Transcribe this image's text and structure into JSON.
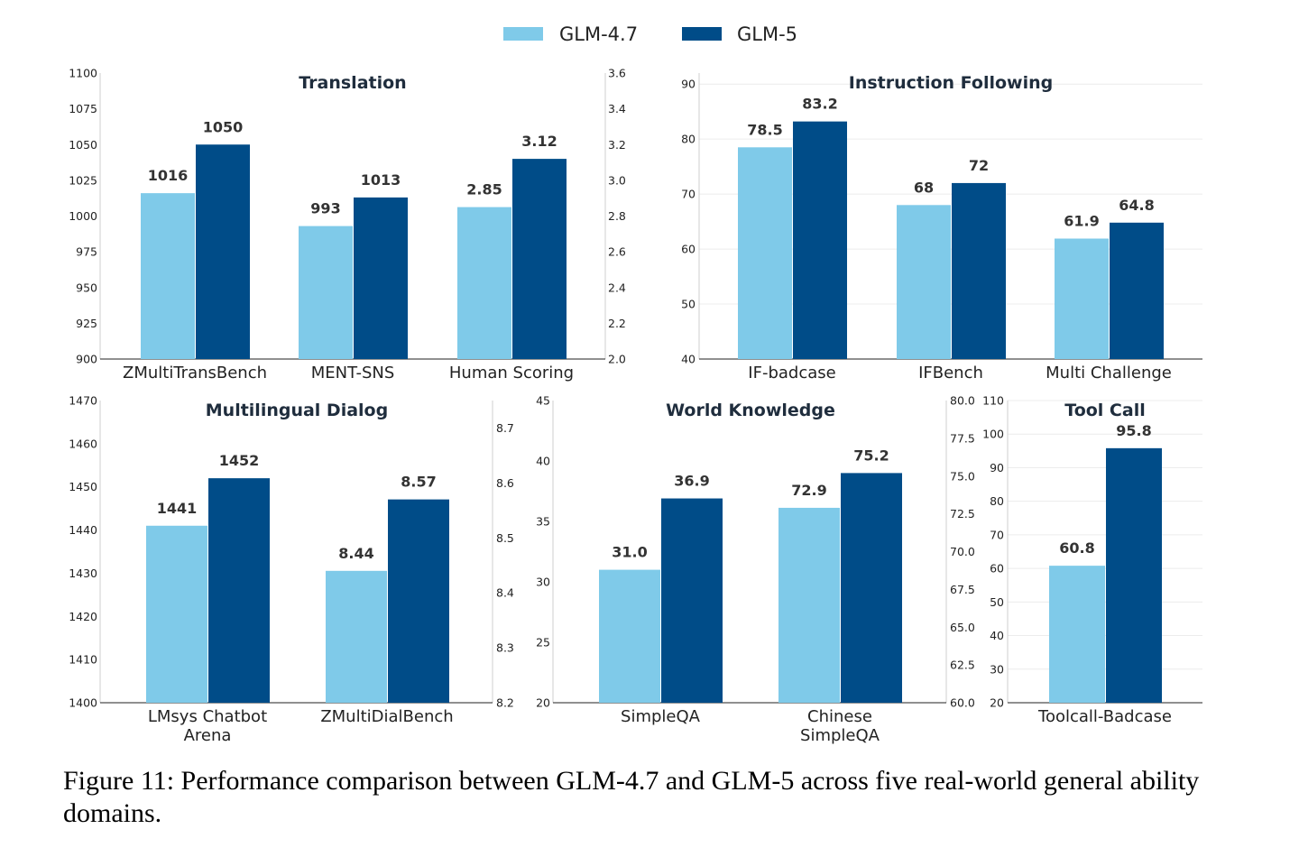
{
  "legend": {
    "series": [
      {
        "name": "GLM-4.7",
        "color": "#7fcae9"
      },
      {
        "name": "GLM-5",
        "color": "#004c88"
      }
    ],
    "placement": "top-center"
  },
  "caption": "Figure 11: Performance comparison between GLM-4.7 and GLM-5 across five real-world general ability domains.",
  "chart_data": [
    {
      "type": "bar",
      "title": "Translation",
      "categories": [
        "ZMultiTransBench",
        "MENT-SNS",
        "Human Scoring"
      ],
      "series": [
        {
          "name": "GLM-4.7",
          "values": [
            1016,
            993,
            2.85
          ]
        },
        {
          "name": "GLM-5",
          "values": [
            1050,
            1013,
            3.12
          ]
        }
      ],
      "data_labels": [
        [
          "1016",
          "993",
          "2.85"
        ],
        [
          "1050",
          "1013",
          "3.12"
        ]
      ],
      "category_axis": [
        "left",
        "left",
        "right"
      ],
      "left_axis": {
        "ylim": [
          900,
          1100
        ],
        "ticks": [
          "900",
          "925",
          "950",
          "975",
          "1000",
          "1025",
          "1050",
          "1075",
          "1100"
        ]
      },
      "right_axis": {
        "ylim": [
          2.0,
          3.6
        ],
        "ticks": [
          "2.0",
          "2.2",
          "2.4",
          "2.6",
          "2.8",
          "3.0",
          "3.2",
          "3.4",
          "3.6"
        ]
      },
      "grid": false
    },
    {
      "type": "bar",
      "title": "Instruction Following",
      "categories": [
        "IF-badcase",
        "IFBench",
        "Multi Challenge"
      ],
      "series": [
        {
          "name": "GLM-4.7",
          "values": [
            78.5,
            68,
            61.9
          ]
        },
        {
          "name": "GLM-5",
          "values": [
            83.2,
            72,
            64.8
          ]
        }
      ],
      "data_labels": [
        [
          "78.5",
          "68",
          "61.9"
        ],
        [
          "83.2",
          "72",
          "64.8"
        ]
      ],
      "category_axis": [
        "left",
        "left",
        "left"
      ],
      "left_axis": {
        "ylim": [
          40,
          92
        ],
        "ticks": [
          "40",
          "50",
          "60",
          "70",
          "80",
          "90"
        ]
      },
      "grid": true
    },
    {
      "type": "bar",
      "title": "Multilingual Dialog",
      "categories": [
        [
          "LMsys Chatbot",
          "Arena"
        ],
        [
          "ZMultiDialBench"
        ]
      ],
      "series": [
        {
          "name": "GLM-4.7",
          "values": [
            1441,
            8.44
          ]
        },
        {
          "name": "GLM-5",
          "values": [
            1452,
            8.57
          ]
        }
      ],
      "data_labels": [
        [
          "1441",
          "8.44"
        ],
        [
          "1452",
          "8.57"
        ]
      ],
      "category_axis": [
        "left",
        "right"
      ],
      "left_axis": {
        "ylim": [
          1400,
          1470
        ],
        "ticks": [
          "1400",
          "1410",
          "1420",
          "1430",
          "1440",
          "1450",
          "1460",
          "1470"
        ]
      },
      "right_axis": {
        "ylim": [
          8.2,
          8.75
        ],
        "ticks": [
          "8.2",
          "8.3",
          "8.4",
          "8.5",
          "8.6",
          "8.7"
        ]
      },
      "grid": false
    },
    {
      "type": "bar",
      "title": "World Knowledge",
      "categories": [
        [
          "SimpleQA"
        ],
        [
          "Chinese",
          "SimpleQA"
        ]
      ],
      "series": [
        {
          "name": "GLM-4.7",
          "values": [
            31.0,
            72.9
          ]
        },
        {
          "name": "GLM-5",
          "values": [
            36.9,
            75.2
          ]
        }
      ],
      "data_labels": [
        [
          "31.0",
          "72.9"
        ],
        [
          "36.9",
          "75.2"
        ]
      ],
      "category_axis": [
        "left",
        "right"
      ],
      "left_axis": {
        "ylim": [
          20,
          45
        ],
        "ticks": [
          "20",
          "25",
          "30",
          "35",
          "40",
          "45"
        ]
      },
      "right_axis": {
        "ylim": [
          60,
          80
        ],
        "ticks": [
          "60.0",
          "62.5",
          "65.0",
          "67.5",
          "70.0",
          "72.5",
          "75.0",
          "77.5",
          "80.0"
        ]
      },
      "grid": false
    },
    {
      "type": "bar",
      "title": "Tool Call",
      "categories": [
        [
          "Toolcall-Badcase"
        ]
      ],
      "series": [
        {
          "name": "GLM-4.7",
          "values": [
            60.8
          ]
        },
        {
          "name": "GLM-5",
          "values": [
            95.8
          ]
        }
      ],
      "data_labels": [
        [
          "60.8"
        ],
        [
          "95.8"
        ]
      ],
      "category_axis": [
        "left"
      ],
      "left_axis": {
        "ylim": [
          20,
          110
        ],
        "ticks": [
          "20",
          "30",
          "40",
          "50",
          "60",
          "70",
          "80",
          "90",
          "100",
          "110"
        ]
      },
      "grid": true
    }
  ]
}
